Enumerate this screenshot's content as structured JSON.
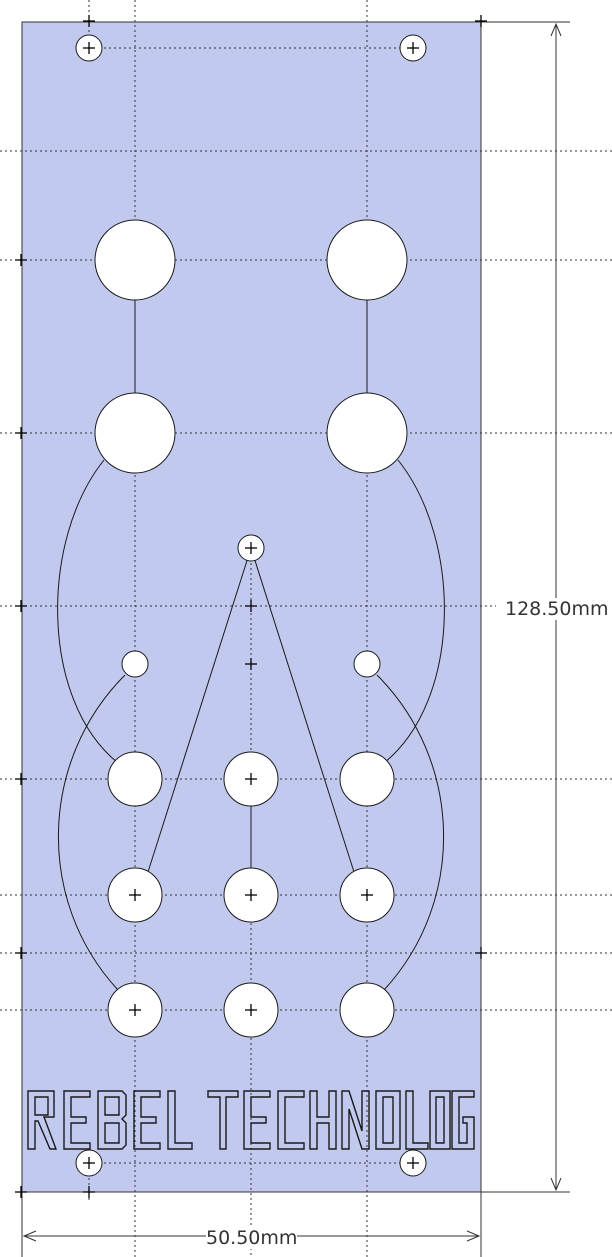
{
  "drawing": {
    "panel_color": "#c1c9ee",
    "line_color": "#1a1a1a",
    "guide_color": "#333333",
    "brand_text": "REBEL TECHNOLOGY",
    "dimensions": {
      "width_label": "50.50mm",
      "height_label": "128.50mm"
    }
  }
}
